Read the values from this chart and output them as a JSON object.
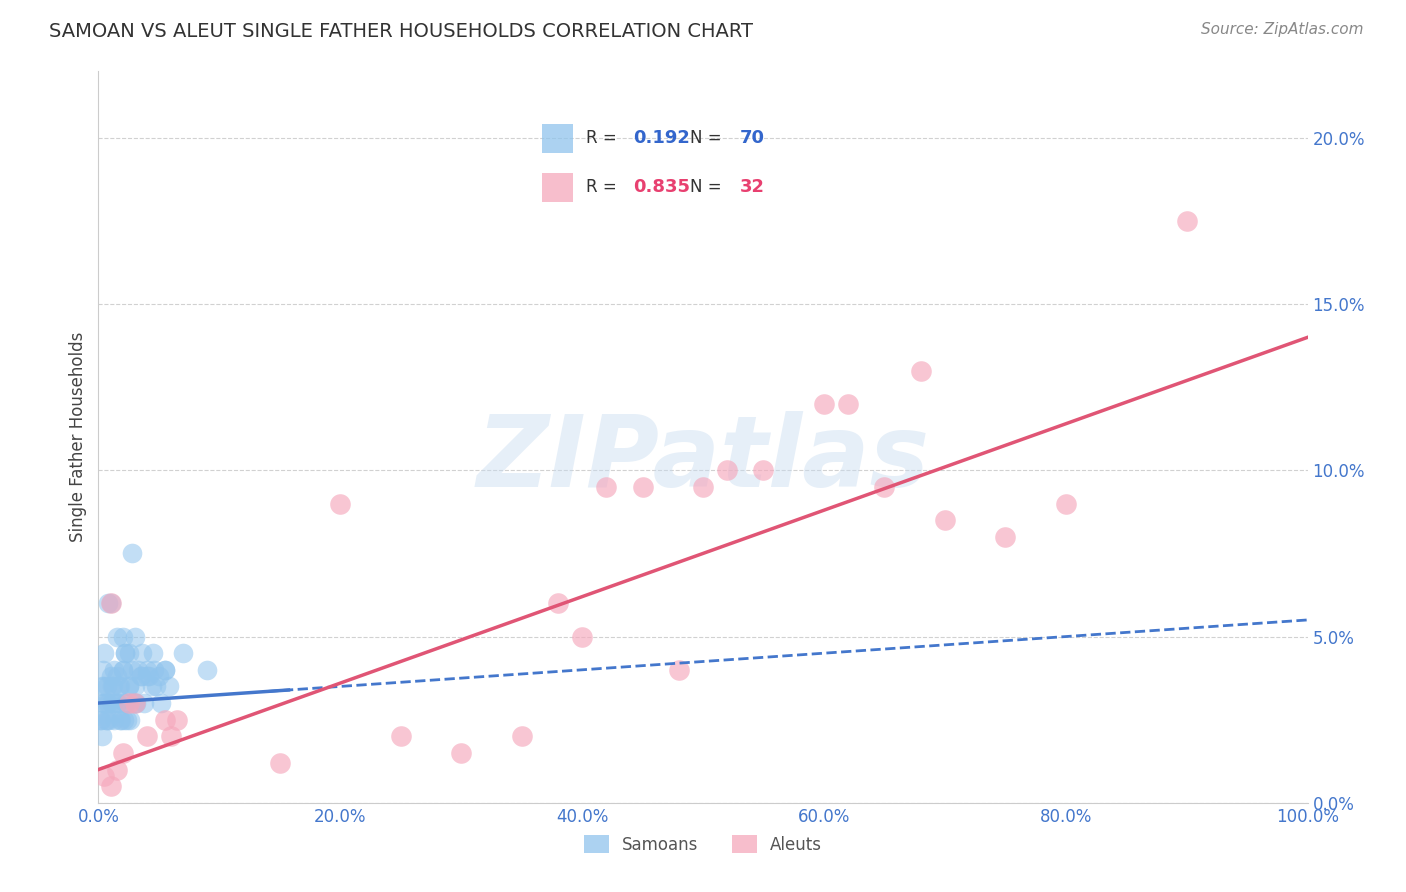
{
  "title": "SAMOAN VS ALEUT SINGLE FATHER HOUSEHOLDS CORRELATION CHART",
  "source": "Source: ZipAtlas.com",
  "ylabel_label": "Single Father Households",
  "xlim": [
    0,
    1.0
  ],
  "ylim": [
    0.0,
    0.22
  ],
  "samoan_R": "0.192",
  "samoan_N": "70",
  "aleut_R": "0.835",
  "aleut_N": "32",
  "samoan_color": "#90C4ED",
  "aleut_color": "#F5A8BC",
  "samoan_line_color": "#4477CC",
  "aleut_line_color": "#E05575",
  "samoan_x": [
    0.005,
    0.005,
    0.008,
    0.01,
    0.01,
    0.012,
    0.013,
    0.015,
    0.015,
    0.016,
    0.017,
    0.018,
    0.019,
    0.02,
    0.02,
    0.021,
    0.022,
    0.022,
    0.023,
    0.024,
    0.025,
    0.025,
    0.026,
    0.028,
    0.03,
    0.03,
    0.031,
    0.033,
    0.035,
    0.036,
    0.038,
    0.04,
    0.042,
    0.044,
    0.046,
    0.048,
    0.05,
    0.052,
    0.055,
    0.058,
    0.001,
    0.002,
    0.003,
    0.003,
    0.004,
    0.004,
    0.005,
    0.006,
    0.006,
    0.007,
    0.007,
    0.008,
    0.009,
    0.01,
    0.011,
    0.012,
    0.013,
    0.015,
    0.018,
    0.02,
    0.022,
    0.025,
    0.028,
    0.03,
    0.035,
    0.04,
    0.045,
    0.055,
    0.07,
    0.09
  ],
  "samoan_y": [
    0.03,
    0.035,
    0.06,
    0.03,
    0.06,
    0.035,
    0.025,
    0.03,
    0.05,
    0.03,
    0.035,
    0.025,
    0.025,
    0.04,
    0.05,
    0.025,
    0.03,
    0.045,
    0.03,
    0.025,
    0.035,
    0.045,
    0.025,
    0.04,
    0.035,
    0.05,
    0.03,
    0.04,
    0.038,
    0.045,
    0.03,
    0.04,
    0.038,
    0.035,
    0.04,
    0.035,
    0.038,
    0.03,
    0.04,
    0.035,
    0.025,
    0.025,
    0.02,
    0.035,
    0.03,
    0.04,
    0.045,
    0.025,
    0.03,
    0.025,
    0.035,
    0.03,
    0.025,
    0.038,
    0.035,
    0.03,
    0.04,
    0.038,
    0.035,
    0.04,
    0.045,
    0.035,
    0.075,
    0.03,
    0.038,
    0.038,
    0.045,
    0.04,
    0.045,
    0.04
  ],
  "aleut_x": [
    0.005,
    0.01,
    0.01,
    0.015,
    0.02,
    0.025,
    0.03,
    0.04,
    0.055,
    0.06,
    0.065,
    0.15,
    0.2,
    0.25,
    0.3,
    0.35,
    0.38,
    0.4,
    0.42,
    0.45,
    0.48,
    0.5,
    0.52,
    0.55,
    0.6,
    0.62,
    0.65,
    0.68,
    0.7,
    0.75,
    0.8,
    0.9
  ],
  "aleut_y": [
    0.008,
    0.005,
    0.06,
    0.01,
    0.015,
    0.03,
    0.03,
    0.02,
    0.025,
    0.02,
    0.025,
    0.012,
    0.09,
    0.02,
    0.015,
    0.02,
    0.06,
    0.05,
    0.095,
    0.095,
    0.04,
    0.095,
    0.1,
    0.1,
    0.12,
    0.12,
    0.095,
    0.13,
    0.085,
    0.08,
    0.09,
    0.175
  ],
  "samoan_line_slope": 0.025,
  "samoan_line_intercept": 0.03,
  "samoan_line_solid_end": 0.15,
  "aleut_line_slope": 0.13,
  "aleut_line_intercept": 0.01,
  "background_color": "#FFFFFF",
  "grid_color": "#CCCCCC"
}
